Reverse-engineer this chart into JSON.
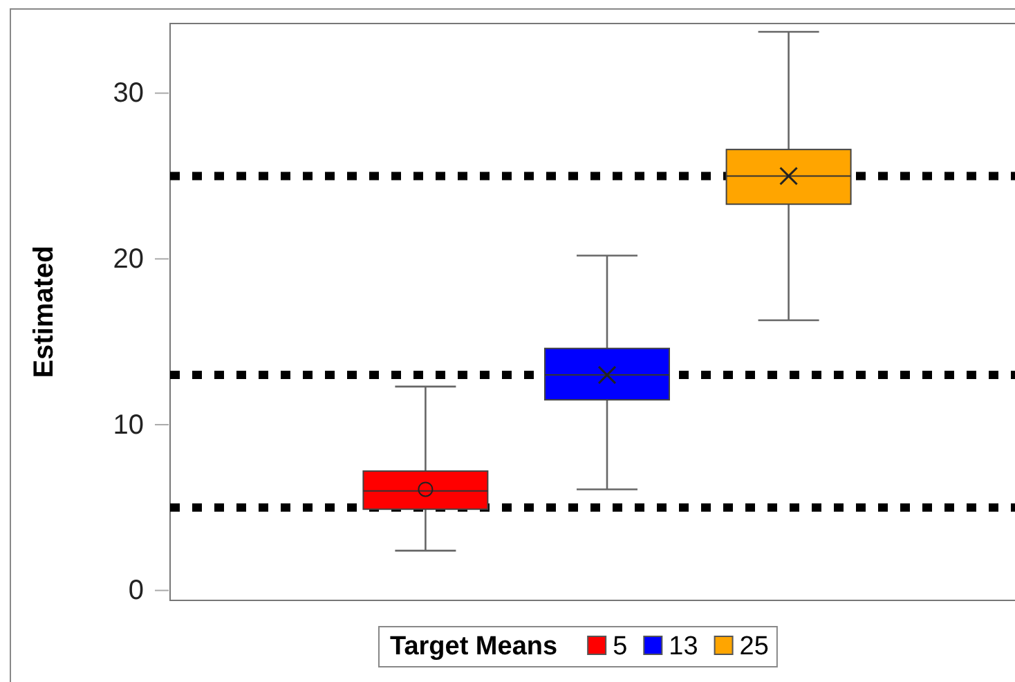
{
  "chart_data": {
    "type": "box",
    "ylabel": "Estimated",
    "legend_title": "Target Means",
    "legend": "bottom",
    "categories": [
      null
    ],
    "ylim": [
      -0.6,
      34.2
    ],
    "yticks": [
      0,
      10,
      20,
      30
    ],
    "tick_labels": "y",
    "grid": false,
    "series": [
      {
        "name": "5",
        "color": "#ff0000",
        "marker": "circle",
        "boxes": [
          {
            "low": 2.4,
            "q1": 4.9,
            "median": 6.0,
            "q3": 7.2,
            "high": 12.3,
            "mean": 6.1
          }
        ]
      },
      {
        "name": "13",
        "color": "#0000ff",
        "marker": "cross",
        "boxes": [
          {
            "low": 6.1,
            "q1": 11.5,
            "median": 13.0,
            "q3": 14.6,
            "high": 20.2,
            "mean": 13.0
          }
        ]
      },
      {
        "name": "25",
        "color": "#ffa500",
        "marker": "cross",
        "boxes": [
          {
            "low": 16.3,
            "q1": 23.3,
            "median": 25.0,
            "q3": 26.6,
            "high": 33.7,
            "mean": 25.0
          }
        ]
      }
    ],
    "ref_lines": [
      {
        "axis": "y",
        "value": 5,
        "color": "#000000",
        "line_style": "dotted"
      },
      {
        "axis": "y",
        "value": 13,
        "color": "#000000",
        "line_style": "dotted"
      },
      {
        "axis": "y",
        "value": 25,
        "color": "#000000",
        "line_style": "dotted"
      }
    ]
  }
}
